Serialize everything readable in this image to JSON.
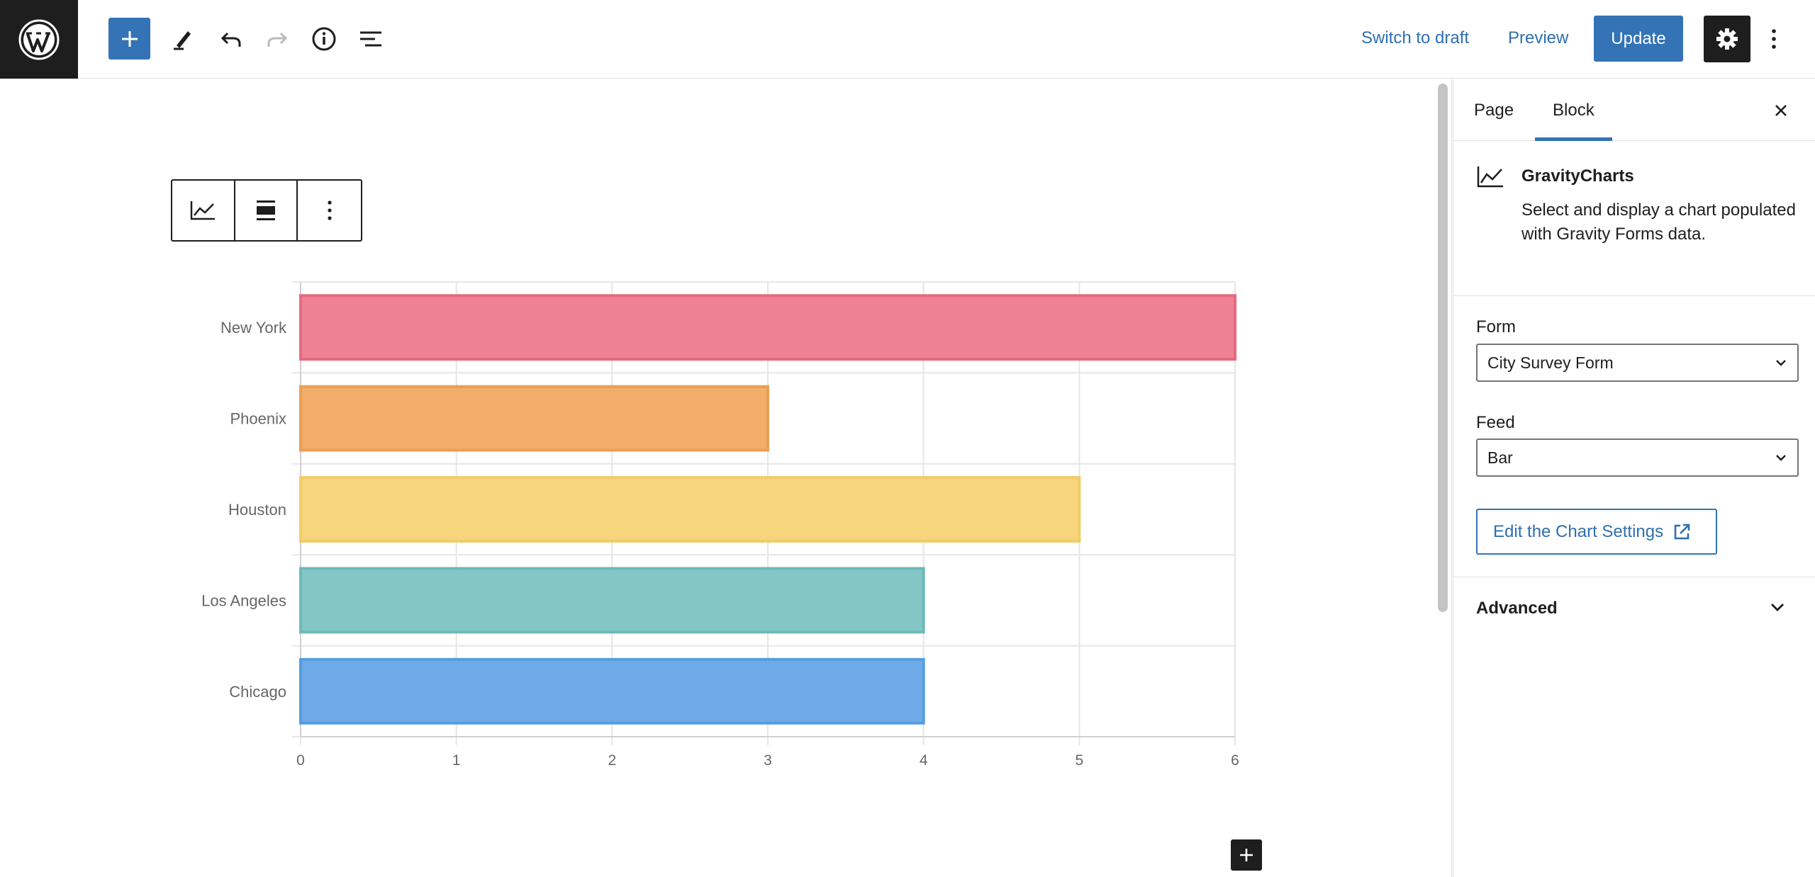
{
  "header": {
    "switch_to_draft": "Switch to draft",
    "preview": "Preview",
    "update": "Update",
    "icons": [
      "wordpress-logo",
      "plus-icon",
      "pencil-icon",
      "undo-icon",
      "redo-icon",
      "info-icon",
      "list-view-icon",
      "gear-icon",
      "more-vertical-icon"
    ]
  },
  "sidebar": {
    "tabs": [
      "Page",
      "Block"
    ],
    "active_tab": "Block",
    "block": {
      "title": "GravityCharts",
      "description": "Select and display a chart populated with Gravity Forms data."
    },
    "form": {
      "label": "Form",
      "value": "City Survey Form"
    },
    "feed": {
      "label": "Feed",
      "value": "Bar"
    },
    "edit_button": "Edit the Chart Settings",
    "advanced": "Advanced"
  },
  "colors": {
    "accent": "#3373b6",
    "dark": "#1e1e1e"
  },
  "chart_data": {
    "type": "bar",
    "orientation": "horizontal",
    "categories": [
      "New York",
      "Phoenix",
      "Houston",
      "Los Angeles",
      "Chicago"
    ],
    "values": [
      6,
      3,
      5,
      4,
      4
    ],
    "colors": [
      "#ee8294",
      "#f1ad69",
      "#f6d57d",
      "#83c6c5",
      "#6eabe8"
    ],
    "borders": [
      "#e56a80",
      "#eb9f52",
      "#f1cc66",
      "#6cbab8",
      "#559ce1"
    ],
    "xlim": [
      0,
      6
    ],
    "xticks": [
      "0",
      "1",
      "2",
      "3",
      "4",
      "5",
      "6"
    ],
    "grid": true,
    "title": "",
    "xlabel": "",
    "ylabel": ""
  }
}
